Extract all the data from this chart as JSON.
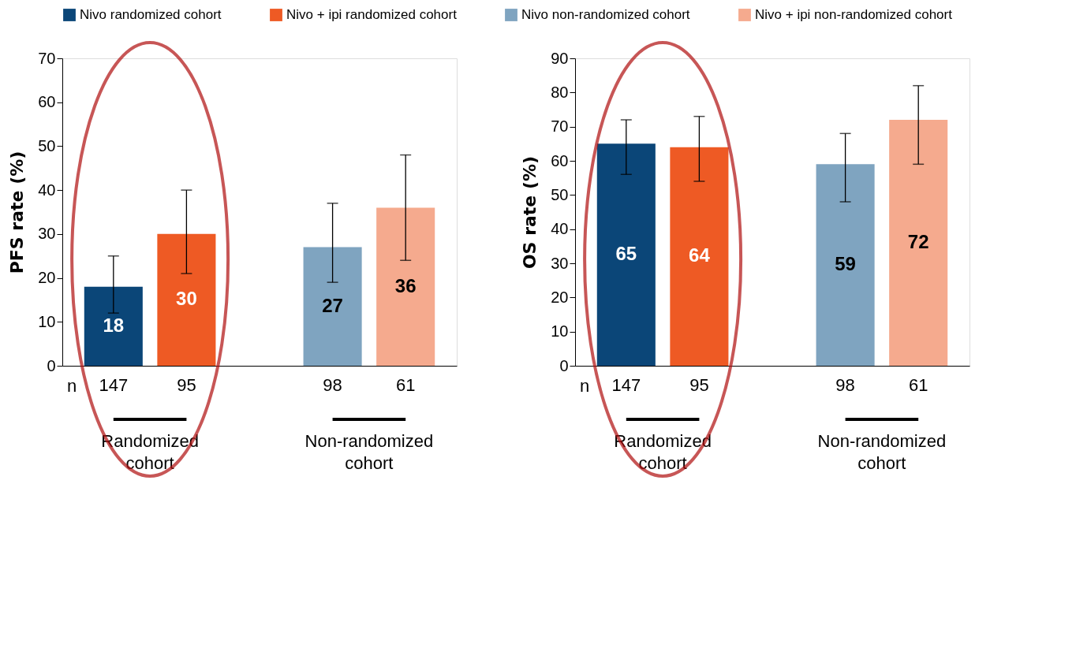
{
  "chart_data": [
    {
      "type": "bar",
      "ylabel": "PFS rate (%)",
      "categories": [
        "147",
        "95",
        "98",
        "61"
      ],
      "ylim": [
        0,
        70
      ],
      "yticks": [
        0,
        10,
        20,
        30,
        40,
        50,
        60,
        70
      ],
      "grid": false,
      "legend": "top",
      "data_labels": true,
      "series": [
        {
          "name": "Nivo randomized cohort",
          "color": "#0b4678",
          "values": [
            18,
            null,
            null,
            null
          ],
          "errors": [
            [
              12,
              25
            ],
            null,
            null,
            null
          ]
        },
        {
          "name": "Nivo + ipi randomized cohort",
          "color": "#ee5a24",
          "values": [
            null,
            30,
            null,
            null
          ],
          "errors": [
            null,
            [
              21,
              40
            ],
            null,
            null
          ]
        },
        {
          "name": "Nivo non-randomized cohort",
          "color": "#7fa4c0",
          "values": [
            null,
            null,
            27,
            null
          ],
          "errors": [
            null,
            null,
            [
              19,
              37
            ],
            null
          ]
        },
        {
          "name": "Nivo + ipi non-randomized cohort",
          "color": "#f5aa8e",
          "values": [
            null,
            null,
            null,
            36
          ],
          "errors": [
            null,
            null,
            null,
            [
              24,
              48
            ]
          ]
        }
      ],
      "annotations": [
        "n",
        "Randomized cohort",
        "Non-randomized cohort"
      ]
    },
    {
      "type": "bar",
      "ylabel": "OS rate (%)",
      "categories": [
        "147",
        "95",
        "98",
        "61"
      ],
      "ylim": [
        0,
        90
      ],
      "yticks": [
        0,
        10,
        20,
        30,
        40,
        50,
        60,
        70,
        80,
        90
      ],
      "grid": false,
      "legend": "top",
      "data_labels": true,
      "series": [
        {
          "name": "Nivo randomized cohort",
          "color": "#0b4678",
          "values": [
            65,
            null,
            null,
            null
          ],
          "errors": [
            [
              56,
              72
            ],
            null,
            null,
            null
          ]
        },
        {
          "name": "Nivo + ipi randomized cohort",
          "color": "#ee5a24",
          "values": [
            null,
            64,
            null,
            null
          ],
          "errors": [
            null,
            [
              54,
              73
            ],
            null,
            null
          ]
        },
        {
          "name": "Nivo non-randomized cohort",
          "color": "#7fa4c0",
          "values": [
            null,
            null,
            59,
            null
          ],
          "errors": [
            null,
            null,
            [
              48,
              68
            ],
            null
          ]
        },
        {
          "name": "Nivo + ipi non-randomized cohort",
          "color": "#f5aa8e",
          "values": [
            null,
            null,
            null,
            72
          ],
          "errors": [
            null,
            null,
            null,
            [
              59,
              82
            ]
          ]
        }
      ],
      "annotations": [
        "n",
        "Randomized cohort",
        "Non-randomized cohort"
      ]
    }
  ]
}
